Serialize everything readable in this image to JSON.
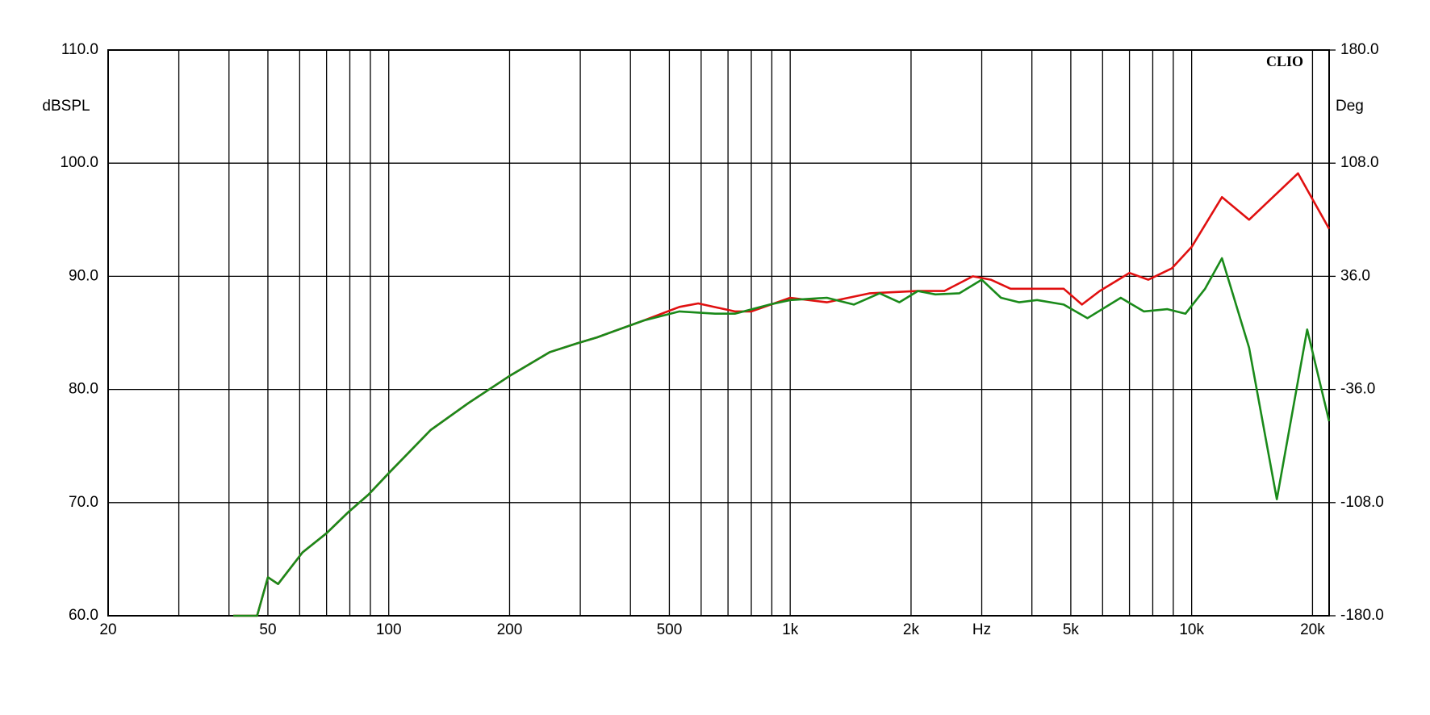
{
  "chart_data": {
    "type": "line",
    "brand": "CLIO",
    "y_label": "dBSPL",
    "y2_label": "Deg",
    "log_x": true,
    "xlim": [
      20,
      22000
    ],
    "xticks": [
      20,
      50,
      100,
      200,
      500,
      {
        "value": 1000,
        "label": "1k"
      },
      {
        "value": 2000,
        "label": "2k"
      },
      {
        "value": 3000,
        "label": "Hz"
      },
      {
        "value": 5000,
        "label": "5k"
      },
      {
        "value": 10000,
        "label": "10k"
      },
      {
        "value": 20000,
        "label": "20k"
      }
    ],
    "x_grid": [
      20,
      30,
      40,
      50,
      60,
      70,
      80,
      90,
      100,
      200,
      300,
      400,
      500,
      600,
      700,
      800,
      900,
      1000,
      2000,
      3000,
      4000,
      5000,
      6000,
      7000,
      8000,
      9000,
      10000,
      20000
    ],
    "ylim": [
      60,
      110
    ],
    "yticks": [
      {
        "value": 60,
        "label": "60.0"
      },
      {
        "value": 70,
        "label": "70.0"
      },
      {
        "value": 80,
        "label": "80.0"
      },
      {
        "value": 90,
        "label": "90.0"
      },
      {
        "value": 100,
        "label": "100.0"
      },
      {
        "value": 110,
        "label": "110.0"
      }
    ],
    "y2lim": [
      -180,
      180
    ],
    "y2ticks": [
      {
        "value": -180,
        "label": "-180.0"
      },
      {
        "value": -108,
        "label": "-108.0"
      },
      {
        "value": -36,
        "label": "-36.0"
      },
      {
        "value": 36,
        "label": "36.0"
      },
      {
        "value": 108,
        "label": "108.0"
      },
      {
        "value": 180,
        "label": "180.0"
      }
    ],
    "grid": true,
    "series": [
      {
        "color": "#e01010",
        "x": [
          41,
          47,
          50,
          53,
          61,
          70,
          79,
          89,
          100,
          127,
          158,
          200,
          252,
          296,
          330,
          432,
          530,
          590,
          728,
          800,
          1000,
          1234,
          1580,
          2080,
          2420,
          2850,
          3160,
          3540,
          4120,
          4800,
          5330,
          5900,
          7000,
          7800,
          8920,
          10000,
          11900,
          13900,
          18400,
          22000
        ],
        "values": [
          60,
          60,
          63.4,
          62.8,
          65.6,
          67.3,
          69.1,
          70.7,
          72.6,
          76.4,
          78.8,
          81.2,
          83.3,
          84.1,
          84.6,
          86.1,
          87.3,
          87.6,
          86.9,
          86.9,
          88.1,
          87.7,
          88.5,
          88.7,
          88.7,
          90.0,
          89.7,
          88.9,
          88.9,
          88.9,
          87.5,
          88.7,
          90.3,
          89.7,
          90.7,
          92.6,
          97.0,
          95.0,
          99.1,
          94.2
        ]
      },
      {
        "color": "#1a8a1a",
        "x": [
          41,
          47,
          50,
          53,
          61,
          70,
          79,
          89,
          100,
          127,
          158,
          200,
          252,
          296,
          330,
          432,
          530,
          650,
          728,
          889,
          1000,
          1234,
          1440,
          1670,
          1870,
          2080,
          2300,
          2640,
          3000,
          3350,
          3720,
          4120,
          4800,
          5500,
          6660,
          7600,
          8700,
          9650,
          10800,
          11900,
          13900,
          16300,
          19400,
          22000
        ],
        "values": [
          60,
          60,
          63.4,
          62.8,
          65.6,
          67.3,
          69.1,
          70.7,
          72.6,
          76.4,
          78.8,
          81.2,
          83.3,
          84.1,
          84.6,
          86.1,
          86.9,
          86.7,
          86.7,
          87.5,
          87.9,
          88.1,
          87.5,
          88.5,
          87.7,
          88.7,
          88.4,
          88.5,
          89.7,
          88.1,
          87.7,
          87.9,
          87.5,
          86.3,
          88.1,
          86.9,
          87.1,
          86.7,
          88.9,
          91.6,
          83.7,
          70.3,
          85.3,
          77.2
        ]
      }
    ]
  }
}
